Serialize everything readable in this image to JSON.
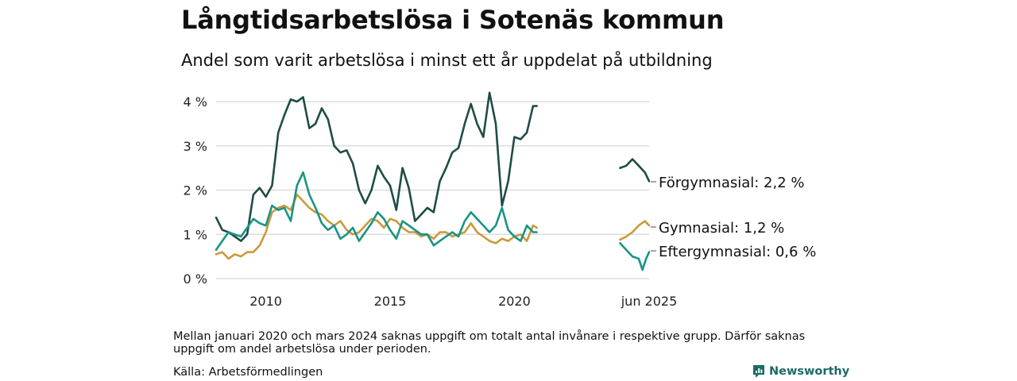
{
  "header": {
    "title": "Långtidsarbetslösa i Sotenäs kommun",
    "subtitle": "Andel som varit arbetslösa i minst ett år uppdelat på utbildning"
  },
  "footnote": "Mellan januari 2020 och mars 2024 saknas uppgift om totalt antal invånare i respektive grupp. Därför saknas uppgift om andel arbetslösa under perioden.",
  "source": "Källa: Arbetsförmedlingen",
  "brand": {
    "name": "Newsworthy",
    "icon": "newsworthy-logo-icon"
  },
  "chart_data": {
    "type": "line",
    "title": "Långtidsarbetslösa i Sotenäs kommun",
    "subtitle": "Andel som varit arbetslösa i minst ett år uppdelat på utbildning",
    "xlabel": "",
    "ylabel": "",
    "ylim": [
      0,
      4.2
    ],
    "y_ticks": [
      0,
      1,
      2,
      3,
      4
    ],
    "y_tick_labels": [
      "0 %",
      "1 %",
      "2 %",
      "3 %",
      "4 %"
    ],
    "x_ticks": [
      2010,
      2015,
      2020,
      2025.42
    ],
    "x_tick_labels": [
      "2010",
      "2015",
      "2020",
      "jun 2025"
    ],
    "xlim": [
      2008.0,
      2026.5
    ],
    "grid": true,
    "legend": "direct labels at line ends (right)",
    "series": [
      {
        "name": "Förgymnasial",
        "end_label": "Förgymnasial: 2,2 %",
        "color": "#1f4d45",
        "segments": [
          [
            [
              2008.0,
              1.38
            ],
            [
              2008.25,
              1.1
            ],
            [
              2008.5,
              1.05
            ],
            [
              2008.75,
              0.95
            ],
            [
              2009.0,
              0.85
            ],
            [
              2009.25,
              1.0
            ],
            [
              2009.5,
              1.9
            ],
            [
              2009.75,
              2.05
            ],
            [
              2010.0,
              1.85
            ],
            [
              2010.25,
              2.1
            ],
            [
              2010.5,
              3.3
            ],
            [
              2010.75,
              3.7
            ],
            [
              2011.0,
              4.05
            ],
            [
              2011.25,
              4.0
            ],
            [
              2011.5,
              4.1
            ],
            [
              2011.75,
              3.4
            ],
            [
              2012.0,
              3.5
            ],
            [
              2012.25,
              3.85
            ],
            [
              2012.5,
              3.6
            ],
            [
              2012.75,
              3.0
            ],
            [
              2013.0,
              2.85
            ],
            [
              2013.25,
              2.9
            ],
            [
              2013.5,
              2.6
            ],
            [
              2013.75,
              2.0
            ],
            [
              2014.0,
              1.7
            ],
            [
              2014.25,
              2.0
            ],
            [
              2014.5,
              2.55
            ],
            [
              2014.75,
              2.3
            ],
            [
              2015.0,
              2.1
            ],
            [
              2015.25,
              1.55
            ],
            [
              2015.5,
              2.5
            ],
            [
              2015.75,
              2.05
            ],
            [
              2016.0,
              1.3
            ],
            [
              2016.25,
              1.45
            ],
            [
              2016.5,
              1.6
            ],
            [
              2016.75,
              1.5
            ],
            [
              2017.0,
              2.2
            ],
            [
              2017.25,
              2.5
            ],
            [
              2017.5,
              2.85
            ],
            [
              2017.75,
              2.95
            ],
            [
              2018.0,
              3.5
            ],
            [
              2018.25,
              3.95
            ],
            [
              2018.5,
              3.5
            ],
            [
              2018.75,
              3.2
            ],
            [
              2019.0,
              4.2
            ],
            [
              2019.25,
              3.5
            ],
            [
              2019.5,
              1.65
            ],
            [
              2019.75,
              2.2
            ],
            [
              2020.0,
              3.2
            ],
            [
              2020.25,
              3.15
            ],
            [
              2020.5,
              3.3
            ],
            [
              2020.75,
              3.9
            ],
            [
              2020.9,
              3.9
            ]
          ],
          [
            [
              2024.25,
              2.5
            ],
            [
              2024.5,
              2.55
            ],
            [
              2024.75,
              2.7
            ],
            [
              2025.0,
              2.55
            ],
            [
              2025.25,
              2.4
            ],
            [
              2025.42,
              2.2
            ]
          ]
        ]
      },
      {
        "name": "Gymnasial",
        "end_label": "Gymnasial: 1,2 %",
        "color": "#c99a3c",
        "segments": [
          [
            [
              2008.0,
              0.55
            ],
            [
              2008.25,
              0.6
            ],
            [
              2008.5,
              0.45
            ],
            [
              2008.75,
              0.55
            ],
            [
              2009.0,
              0.5
            ],
            [
              2009.25,
              0.6
            ],
            [
              2009.5,
              0.6
            ],
            [
              2009.75,
              0.75
            ],
            [
              2010.0,
              1.05
            ],
            [
              2010.25,
              1.5
            ],
            [
              2010.5,
              1.6
            ],
            [
              2010.75,
              1.65
            ],
            [
              2011.0,
              1.55
            ],
            [
              2011.25,
              1.9
            ],
            [
              2011.5,
              1.75
            ],
            [
              2011.75,
              1.6
            ],
            [
              2012.0,
              1.5
            ],
            [
              2012.25,
              1.45
            ],
            [
              2012.5,
              1.3
            ],
            [
              2012.75,
              1.2
            ],
            [
              2013.0,
              1.3
            ],
            [
              2013.25,
              1.1
            ],
            [
              2013.5,
              1.0
            ],
            [
              2013.75,
              1.05
            ],
            [
              2014.0,
              1.2
            ],
            [
              2014.25,
              1.35
            ],
            [
              2014.5,
              1.3
            ],
            [
              2014.75,
              1.15
            ],
            [
              2015.0,
              1.35
            ],
            [
              2015.25,
              1.3
            ],
            [
              2015.5,
              1.15
            ],
            [
              2015.75,
              1.05
            ],
            [
              2016.0,
              1.05
            ],
            [
              2016.25,
              0.95
            ],
            [
              2016.5,
              1.0
            ],
            [
              2016.75,
              0.9
            ],
            [
              2017.0,
              1.05
            ],
            [
              2017.25,
              1.05
            ],
            [
              2017.5,
              0.95
            ],
            [
              2017.75,
              1.0
            ],
            [
              2018.0,
              1.05
            ],
            [
              2018.25,
              1.25
            ],
            [
              2018.5,
              1.05
            ],
            [
              2018.75,
              0.95
            ],
            [
              2019.0,
              0.85
            ],
            [
              2019.25,
              0.8
            ],
            [
              2019.5,
              0.9
            ],
            [
              2019.75,
              0.85
            ],
            [
              2020.0,
              0.95
            ],
            [
              2020.25,
              1.0
            ],
            [
              2020.5,
              0.85
            ],
            [
              2020.75,
              1.2
            ],
            [
              2020.9,
              1.15
            ]
          ],
          [
            [
              2024.25,
              0.88
            ],
            [
              2024.5,
              0.95
            ],
            [
              2024.75,
              1.05
            ],
            [
              2025.0,
              1.2
            ],
            [
              2025.25,
              1.3
            ],
            [
              2025.42,
              1.2
            ]
          ]
        ]
      },
      {
        "name": "Eftergymnasial",
        "end_label": "Eftergymnasial: 0,6 %",
        "color": "#1a9485",
        "segments": [
          [
            [
              2008.0,
              0.65
            ],
            [
              2008.25,
              0.85
            ],
            [
              2008.5,
              1.05
            ],
            [
              2008.75,
              1.0
            ],
            [
              2009.0,
              0.95
            ],
            [
              2009.25,
              1.15
            ],
            [
              2009.5,
              1.35
            ],
            [
              2009.75,
              1.25
            ],
            [
              2010.0,
              1.2
            ],
            [
              2010.25,
              1.65
            ],
            [
              2010.5,
              1.55
            ],
            [
              2010.75,
              1.6
            ],
            [
              2011.0,
              1.3
            ],
            [
              2011.25,
              2.1
            ],
            [
              2011.5,
              2.4
            ],
            [
              2011.75,
              1.9
            ],
            [
              2012.0,
              1.6
            ],
            [
              2012.25,
              1.25
            ],
            [
              2012.5,
              1.1
            ],
            [
              2012.75,
              1.2
            ],
            [
              2013.0,
              0.9
            ],
            [
              2013.25,
              1.0
            ],
            [
              2013.5,
              1.15
            ],
            [
              2013.75,
              0.85
            ],
            [
              2014.0,
              1.05
            ],
            [
              2014.25,
              1.25
            ],
            [
              2014.5,
              1.5
            ],
            [
              2014.75,
              1.35
            ],
            [
              2015.0,
              1.1
            ],
            [
              2015.25,
              0.9
            ],
            [
              2015.5,
              1.3
            ],
            [
              2015.75,
              1.2
            ],
            [
              2016.0,
              1.1
            ],
            [
              2016.25,
              1.0
            ],
            [
              2016.5,
              1.0
            ],
            [
              2016.75,
              0.75
            ],
            [
              2017.0,
              0.85
            ],
            [
              2017.25,
              0.95
            ],
            [
              2017.5,
              1.05
            ],
            [
              2017.75,
              0.95
            ],
            [
              2018.0,
              1.3
            ],
            [
              2018.25,
              1.5
            ],
            [
              2018.5,
              1.35
            ],
            [
              2018.75,
              1.2
            ],
            [
              2019.0,
              1.05
            ],
            [
              2019.25,
              1.2
            ],
            [
              2019.5,
              1.6
            ],
            [
              2019.75,
              1.1
            ],
            [
              2020.0,
              0.95
            ],
            [
              2020.25,
              0.85
            ],
            [
              2020.5,
              1.2
            ],
            [
              2020.75,
              1.05
            ],
            [
              2020.9,
              1.05
            ]
          ],
          [
            [
              2024.25,
              0.8
            ],
            [
              2024.5,
              0.65
            ],
            [
              2024.75,
              0.5
            ],
            [
              2025.0,
              0.45
            ],
            [
              2025.15,
              0.2
            ],
            [
              2025.3,
              0.45
            ],
            [
              2025.42,
              0.6
            ]
          ]
        ]
      }
    ]
  }
}
